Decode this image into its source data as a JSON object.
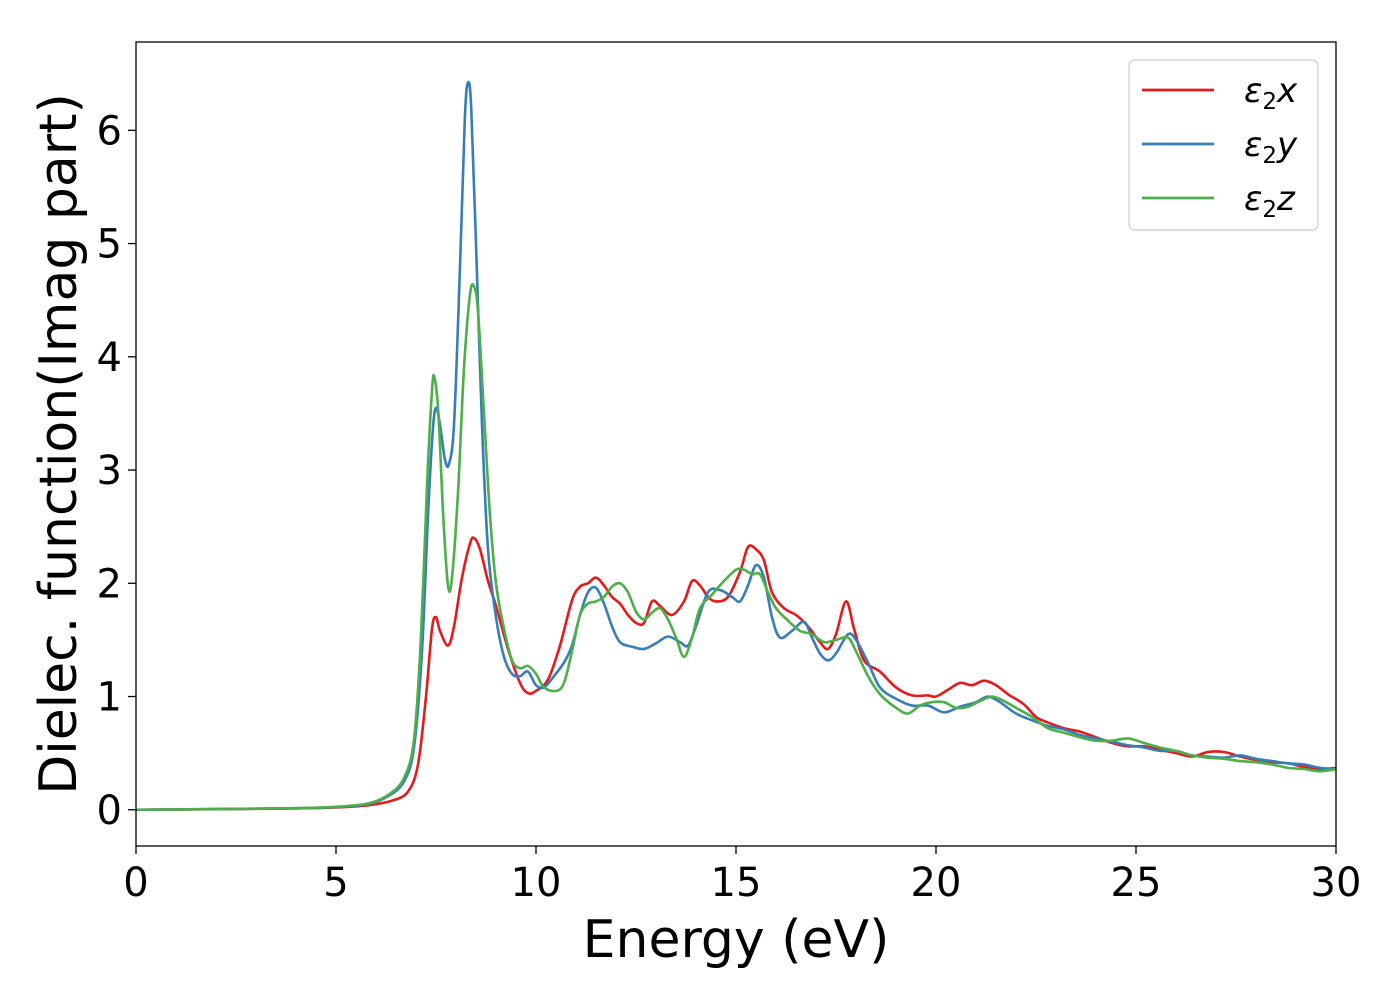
{
  "chart_data": {
    "type": "line",
    "xlabel": "Energy (eV)",
    "ylabel": "Dielec. function(Imag part)",
    "xlim": [
      0,
      30
    ],
    "ylim": [
      -0.32,
      6.78
    ],
    "xticks": [
      "0",
      "5",
      "10",
      "15",
      "20",
      "25",
      "30"
    ],
    "yticks": [
      "0",
      "1",
      "2",
      "3",
      "4",
      "5",
      "6"
    ],
    "grid": false,
    "legend_position": "top-right",
    "series": [
      {
        "name": "ε₂x",
        "legend_main": "ε",
        "legend_sub": "2",
        "legend_suffix": "x",
        "color": "#e41a1c",
        "points": [
          [
            0,
            0.0
          ],
          [
            2,
            0.005
          ],
          [
            4,
            0.012
          ],
          [
            5,
            0.02
          ],
          [
            5.8,
            0.04
          ],
          [
            6.4,
            0.08
          ],
          [
            6.8,
            0.16
          ],
          [
            7.05,
            0.4
          ],
          [
            7.25,
            1.0
          ],
          [
            7.4,
            1.6
          ],
          [
            7.5,
            1.7
          ],
          [
            7.6,
            1.58
          ],
          [
            7.8,
            1.45
          ],
          [
            7.95,
            1.62
          ],
          [
            8.15,
            2.05
          ],
          [
            8.35,
            2.35
          ],
          [
            8.45,
            2.4
          ],
          [
            8.6,
            2.3
          ],
          [
            8.8,
            2.02
          ],
          [
            9.0,
            1.8
          ],
          [
            9.3,
            1.42
          ],
          [
            9.6,
            1.12
          ],
          [
            9.8,
            1.03
          ],
          [
            10.0,
            1.05
          ],
          [
            10.3,
            1.15
          ],
          [
            10.6,
            1.45
          ],
          [
            10.9,
            1.85
          ],
          [
            11.1,
            1.97
          ],
          [
            11.3,
            2.0
          ],
          [
            11.5,
            2.05
          ],
          [
            11.7,
            1.98
          ],
          [
            11.9,
            1.88
          ],
          [
            12.1,
            1.82
          ],
          [
            12.3,
            1.72
          ],
          [
            12.5,
            1.65
          ],
          [
            12.7,
            1.65
          ],
          [
            12.9,
            1.84
          ],
          [
            13.1,
            1.8
          ],
          [
            13.4,
            1.72
          ],
          [
            13.7,
            1.84
          ],
          [
            13.9,
            2.02
          ],
          [
            14.1,
            1.98
          ],
          [
            14.3,
            1.88
          ],
          [
            14.5,
            1.84
          ],
          [
            14.8,
            1.88
          ],
          [
            15.1,
            2.1
          ],
          [
            15.3,
            2.32
          ],
          [
            15.5,
            2.3
          ],
          [
            15.7,
            2.2
          ],
          [
            15.9,
            1.92
          ],
          [
            16.2,
            1.78
          ],
          [
            16.5,
            1.72
          ],
          [
            16.8,
            1.62
          ],
          [
            17.1,
            1.48
          ],
          [
            17.3,
            1.42
          ],
          [
            17.5,
            1.55
          ],
          [
            17.75,
            1.84
          ],
          [
            17.95,
            1.6
          ],
          [
            18.2,
            1.32
          ],
          [
            18.6,
            1.22
          ],
          [
            19.0,
            1.08
          ],
          [
            19.4,
            1.01
          ],
          [
            19.8,
            1.01
          ],
          [
            20.0,
            1.0
          ],
          [
            20.3,
            1.06
          ],
          [
            20.6,
            1.12
          ],
          [
            20.9,
            1.1
          ],
          [
            21.2,
            1.14
          ],
          [
            21.5,
            1.1
          ],
          [
            21.8,
            1.02
          ],
          [
            22.2,
            0.93
          ],
          [
            22.5,
            0.82
          ],
          [
            22.8,
            0.77
          ],
          [
            23.2,
            0.72
          ],
          [
            23.6,
            0.69
          ],
          [
            24.0,
            0.64
          ],
          [
            24.4,
            0.59
          ],
          [
            24.8,
            0.56
          ],
          [
            25.2,
            0.56
          ],
          [
            25.6,
            0.53
          ],
          [
            26.0,
            0.5
          ],
          [
            26.4,
            0.47
          ],
          [
            26.8,
            0.51
          ],
          [
            27.2,
            0.51
          ],
          [
            27.6,
            0.47
          ],
          [
            28.0,
            0.44
          ],
          [
            28.4,
            0.42
          ],
          [
            28.8,
            0.41
          ],
          [
            29.2,
            0.38
          ],
          [
            29.6,
            0.36
          ],
          [
            30,
            0.37
          ]
        ]
      },
      {
        "name": "ε₂y",
        "legend_main": "ε",
        "legend_sub": "2",
        "legend_suffix": "y",
        "color": "#377eb8",
        "points": [
          [
            0,
            0.0
          ],
          [
            2,
            0.006
          ],
          [
            4,
            0.014
          ],
          [
            5,
            0.024
          ],
          [
            5.8,
            0.05
          ],
          [
            6.3,
            0.12
          ],
          [
            6.7,
            0.25
          ],
          [
            6.95,
            0.55
          ],
          [
            7.15,
            1.4
          ],
          [
            7.3,
            2.6
          ],
          [
            7.42,
            3.35
          ],
          [
            7.5,
            3.55
          ],
          [
            7.6,
            3.4
          ],
          [
            7.72,
            3.1
          ],
          [
            7.82,
            3.05
          ],
          [
            7.95,
            3.4
          ],
          [
            8.1,
            4.8
          ],
          [
            8.22,
            6.1
          ],
          [
            8.3,
            6.42
          ],
          [
            8.38,
            6.2
          ],
          [
            8.5,
            5.0
          ],
          [
            8.65,
            3.4
          ],
          [
            8.8,
            2.3
          ],
          [
            9.0,
            1.7
          ],
          [
            9.2,
            1.35
          ],
          [
            9.4,
            1.2
          ],
          [
            9.6,
            1.18
          ],
          [
            9.8,
            1.22
          ],
          [
            10.0,
            1.1
          ],
          [
            10.2,
            1.08
          ],
          [
            10.45,
            1.18
          ],
          [
            10.7,
            1.3
          ],
          [
            10.9,
            1.45
          ],
          [
            11.1,
            1.72
          ],
          [
            11.3,
            1.92
          ],
          [
            11.5,
            1.96
          ],
          [
            11.7,
            1.82
          ],
          [
            11.9,
            1.62
          ],
          [
            12.1,
            1.48
          ],
          [
            12.4,
            1.44
          ],
          [
            12.7,
            1.42
          ],
          [
            13.0,
            1.47
          ],
          [
            13.3,
            1.53
          ],
          [
            13.6,
            1.48
          ],
          [
            13.8,
            1.45
          ],
          [
            14.0,
            1.62
          ],
          [
            14.3,
            1.92
          ],
          [
            14.6,
            1.94
          ],
          [
            14.9,
            1.88
          ],
          [
            15.1,
            1.84
          ],
          [
            15.3,
            1.98
          ],
          [
            15.5,
            2.16
          ],
          [
            15.7,
            2.05
          ],
          [
            15.9,
            1.7
          ],
          [
            16.1,
            1.52
          ],
          [
            16.4,
            1.58
          ],
          [
            16.7,
            1.66
          ],
          [
            16.9,
            1.52
          ],
          [
            17.1,
            1.38
          ],
          [
            17.3,
            1.32
          ],
          [
            17.5,
            1.38
          ],
          [
            17.8,
            1.55
          ],
          [
            18.0,
            1.5
          ],
          [
            18.3,
            1.3
          ],
          [
            18.6,
            1.08
          ],
          [
            19.0,
            0.98
          ],
          [
            19.4,
            0.92
          ],
          [
            19.8,
            0.92
          ],
          [
            20.2,
            0.86
          ],
          [
            20.6,
            0.91
          ],
          [
            21.0,
            0.95
          ],
          [
            21.3,
            1.0
          ],
          [
            21.6,
            0.95
          ],
          [
            22.0,
            0.85
          ],
          [
            22.4,
            0.79
          ],
          [
            22.8,
            0.74
          ],
          [
            23.2,
            0.71
          ],
          [
            23.6,
            0.66
          ],
          [
            24.0,
            0.63
          ],
          [
            24.4,
            0.6
          ],
          [
            24.8,
            0.57
          ],
          [
            25.2,
            0.55
          ],
          [
            25.6,
            0.52
          ],
          [
            26.0,
            0.52
          ],
          [
            26.4,
            0.48
          ],
          [
            26.8,
            0.47
          ],
          [
            27.2,
            0.46
          ],
          [
            27.6,
            0.48
          ],
          [
            28.0,
            0.45
          ],
          [
            28.4,
            0.43
          ],
          [
            28.8,
            0.41
          ],
          [
            29.2,
            0.4
          ],
          [
            29.6,
            0.37
          ],
          [
            30,
            0.36
          ]
        ]
      },
      {
        "name": "ε₂z",
        "legend_main": "ε",
        "legend_sub": "2",
        "legend_suffix": "z",
        "color": "#4daf4a",
        "points": [
          [
            0,
            0.0
          ],
          [
            2,
            0.006
          ],
          [
            4,
            0.014
          ],
          [
            5,
            0.026
          ],
          [
            5.8,
            0.055
          ],
          [
            6.3,
            0.13
          ],
          [
            6.7,
            0.28
          ],
          [
            6.95,
            0.62
          ],
          [
            7.12,
            1.5
          ],
          [
            7.28,
            2.9
          ],
          [
            7.4,
            3.7
          ],
          [
            7.46,
            3.82
          ],
          [
            7.56,
            3.5
          ],
          [
            7.68,
            2.6
          ],
          [
            7.8,
            1.98
          ],
          [
            7.9,
            2.05
          ],
          [
            8.05,
            2.8
          ],
          [
            8.2,
            3.9
          ],
          [
            8.35,
            4.55
          ],
          [
            8.45,
            4.62
          ],
          [
            8.55,
            4.4
          ],
          [
            8.7,
            3.5
          ],
          [
            8.85,
            2.6
          ],
          [
            9.0,
            2.0
          ],
          [
            9.2,
            1.6
          ],
          [
            9.4,
            1.32
          ],
          [
            9.6,
            1.25
          ],
          [
            9.8,
            1.27
          ],
          [
            10.0,
            1.2
          ],
          [
            10.2,
            1.08
          ],
          [
            10.5,
            1.05
          ],
          [
            10.7,
            1.12
          ],
          [
            10.9,
            1.4
          ],
          [
            11.1,
            1.72
          ],
          [
            11.3,
            1.82
          ],
          [
            11.5,
            1.84
          ],
          [
            11.7,
            1.88
          ],
          [
            11.9,
            1.97
          ],
          [
            12.1,
            2.0
          ],
          [
            12.3,
            1.92
          ],
          [
            12.5,
            1.75
          ],
          [
            12.7,
            1.68
          ],
          [
            12.9,
            1.74
          ],
          [
            13.1,
            1.78
          ],
          [
            13.3,
            1.68
          ],
          [
            13.5,
            1.52
          ],
          [
            13.7,
            1.35
          ],
          [
            13.9,
            1.52
          ],
          [
            14.1,
            1.78
          ],
          [
            14.4,
            1.9
          ],
          [
            14.7,
            2.02
          ],
          [
            15.0,
            2.12
          ],
          [
            15.2,
            2.12
          ],
          [
            15.4,
            2.08
          ],
          [
            15.6,
            2.08
          ],
          [
            15.8,
            1.92
          ],
          [
            16.0,
            1.78
          ],
          [
            16.3,
            1.67
          ],
          [
            16.6,
            1.58
          ],
          [
            16.9,
            1.55
          ],
          [
            17.2,
            1.48
          ],
          [
            17.5,
            1.5
          ],
          [
            17.8,
            1.52
          ],
          [
            18.0,
            1.4
          ],
          [
            18.3,
            1.18
          ],
          [
            18.6,
            1.02
          ],
          [
            19.0,
            0.9
          ],
          [
            19.3,
            0.85
          ],
          [
            19.6,
            0.92
          ],
          [
            19.9,
            0.95
          ],
          [
            20.2,
            0.95
          ],
          [
            20.5,
            0.9
          ],
          [
            20.8,
            0.91
          ],
          [
            21.1,
            0.96
          ],
          [
            21.4,
            1.0
          ],
          [
            21.7,
            0.96
          ],
          [
            22.0,
            0.9
          ],
          [
            22.4,
            0.82
          ],
          [
            22.8,
            0.72
          ],
          [
            23.2,
            0.68
          ],
          [
            23.6,
            0.64
          ],
          [
            24.0,
            0.61
          ],
          [
            24.4,
            0.61
          ],
          [
            24.8,
            0.63
          ],
          [
            25.2,
            0.59
          ],
          [
            25.6,
            0.55
          ],
          [
            26.0,
            0.52
          ],
          [
            26.4,
            0.48
          ],
          [
            26.8,
            0.46
          ],
          [
            27.2,
            0.45
          ],
          [
            27.6,
            0.43
          ],
          [
            28.0,
            0.42
          ],
          [
            28.4,
            0.4
          ],
          [
            28.8,
            0.37
          ],
          [
            29.2,
            0.36
          ],
          [
            29.6,
            0.34
          ],
          [
            30,
            0.36
          ]
        ]
      }
    ]
  }
}
